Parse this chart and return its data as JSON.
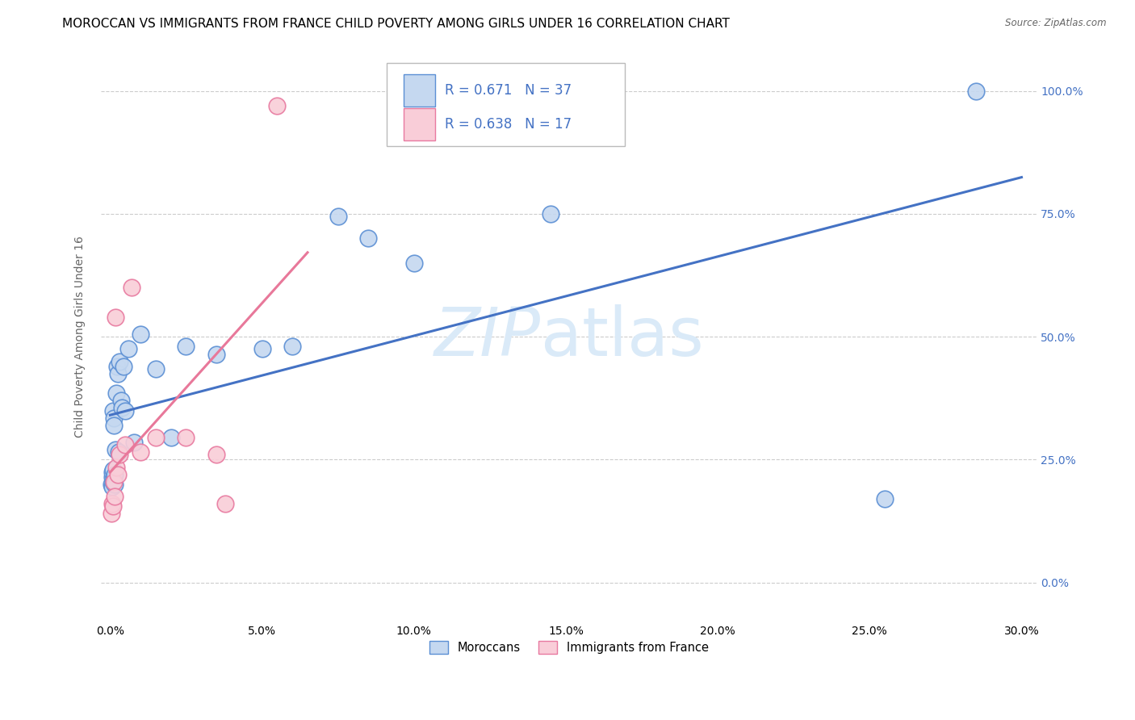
{
  "title": "MOROCCAN VS IMMIGRANTS FROM FRANCE CHILD POVERTY AMONG GIRLS UNDER 16 CORRELATION CHART",
  "source": "Source: ZipAtlas.com",
  "ylabel": "Child Poverty Among Girls Under 16",
  "xlabel_vals": [
    0.0,
    5.0,
    10.0,
    15.0,
    20.0,
    25.0,
    30.0
  ],
  "ylabel_vals": [
    0.0,
    25.0,
    50.0,
    75.0,
    100.0
  ],
  "xlim": [
    -0.3,
    30.5
  ],
  "ylim": [
    -8,
    108
  ],
  "blue_R": 0.671,
  "blue_N": 37,
  "pink_R": 0.638,
  "pink_N": 17,
  "blue_fill": "#c5d8f0",
  "pink_fill": "#f9cdd8",
  "blue_edge": "#5b8fd4",
  "pink_edge": "#e87aa0",
  "blue_line_color": "#4472c4",
  "pink_line_color": "#e8789a",
  "blue_scatter_x": [
    0.05,
    0.07,
    0.07,
    0.08,
    0.1,
    0.1,
    0.1,
    0.12,
    0.12,
    0.13,
    0.15,
    0.15,
    0.18,
    0.2,
    0.22,
    0.25,
    0.28,
    0.3,
    0.35,
    0.4,
    0.45,
    0.5,
    0.6,
    0.8,
    1.0,
    1.5,
    2.0,
    2.5,
    3.5,
    5.0,
    6.0,
    7.5,
    8.5,
    10.0,
    14.5,
    25.5,
    28.5
  ],
  "blue_scatter_y": [
    20.0,
    21.5,
    22.5,
    19.5,
    20.5,
    23.0,
    35.0,
    33.5,
    21.0,
    32.0,
    22.0,
    20.0,
    27.0,
    38.5,
    44.0,
    42.5,
    26.5,
    45.0,
    37.0,
    35.5,
    44.0,
    35.0,
    47.5,
    28.5,
    50.5,
    43.5,
    29.5,
    48.0,
    46.5,
    47.5,
    48.0,
    74.5,
    70.0,
    65.0,
    75.0,
    17.0,
    100.0
  ],
  "pink_scatter_x": [
    0.05,
    0.08,
    0.1,
    0.12,
    0.15,
    0.18,
    0.2,
    0.25,
    0.3,
    0.5,
    0.7,
    1.0,
    1.5,
    2.5,
    3.5,
    3.8,
    5.5
  ],
  "pink_scatter_y": [
    14.0,
    16.0,
    15.5,
    20.5,
    17.5,
    54.0,
    23.5,
    22.0,
    26.0,
    28.0,
    60.0,
    26.5,
    29.5,
    29.5,
    26.0,
    16.0,
    97.0
  ],
  "watermark_zip": "ZIP",
  "watermark_atlas": "atlas",
  "watermark_color": "#daeaf8",
  "legend_label_blue": "Moroccans",
  "legend_label_pink": "Immigrants from France",
  "title_fontsize": 11,
  "label_fontsize": 10,
  "tick_fontsize": 10,
  "legend_fontsize": 12
}
